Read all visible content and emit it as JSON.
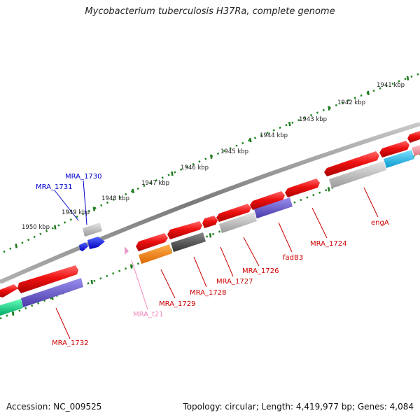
{
  "title": "Mycobacterium tuberculosis H37Ra, complete genome",
  "footer": {
    "accession": "Accession: NC_009525",
    "summary": "Topology: circular; Length: 4,419,977 bp; Genes: 4,084"
  },
  "scale_labels": [
    {
      "text": "1941 kbp"
    },
    {
      "text": "1942 kbp"
    },
    {
      "text": "1943 kbp"
    },
    {
      "text": "1944 kbp"
    },
    {
      "text": "1945 kbp"
    },
    {
      "text": "1946 kbp"
    },
    {
      "text": "1947 kbp"
    },
    {
      "text": "1948 kbp"
    },
    {
      "text": "1949 kbp"
    },
    {
      "text": "1950 kbp"
    }
  ],
  "gene_labels": [
    {
      "text": "MRA_1730",
      "color": "#0000cc"
    },
    {
      "text": "MRA_1731",
      "color": "#0000cc"
    },
    {
      "text": "MRA_1732",
      "color": "#cc0000"
    },
    {
      "text": "MRA_t21",
      "color": "#ee88bb"
    },
    {
      "text": "MRA_1729",
      "color": "#cc0000"
    },
    {
      "text": "MRA_1728",
      "color": "#cc0000"
    },
    {
      "text": "MRA_1727",
      "color": "#cc0000"
    },
    {
      "text": "MRA_1726",
      "color": "#cc0000"
    },
    {
      "text": "fadB3",
      "color": "#cc0000"
    },
    {
      "text": "MRA_1724",
      "color": "#cc0000"
    },
    {
      "text": "engA",
      "color": "#cc0000"
    }
  ],
  "colors": {
    "cds": "#ee1111",
    "coding_grey": "#bbbbbb",
    "dark_grey": "#555555",
    "orange": "#ff8800",
    "purple": "#6655cc",
    "cyan": "#22bbee",
    "green": "#11dd88",
    "pink": "#ee99aa",
    "blue": "#1122ee",
    "tick_green": "#228822",
    "backbone": "#888888"
  }
}
